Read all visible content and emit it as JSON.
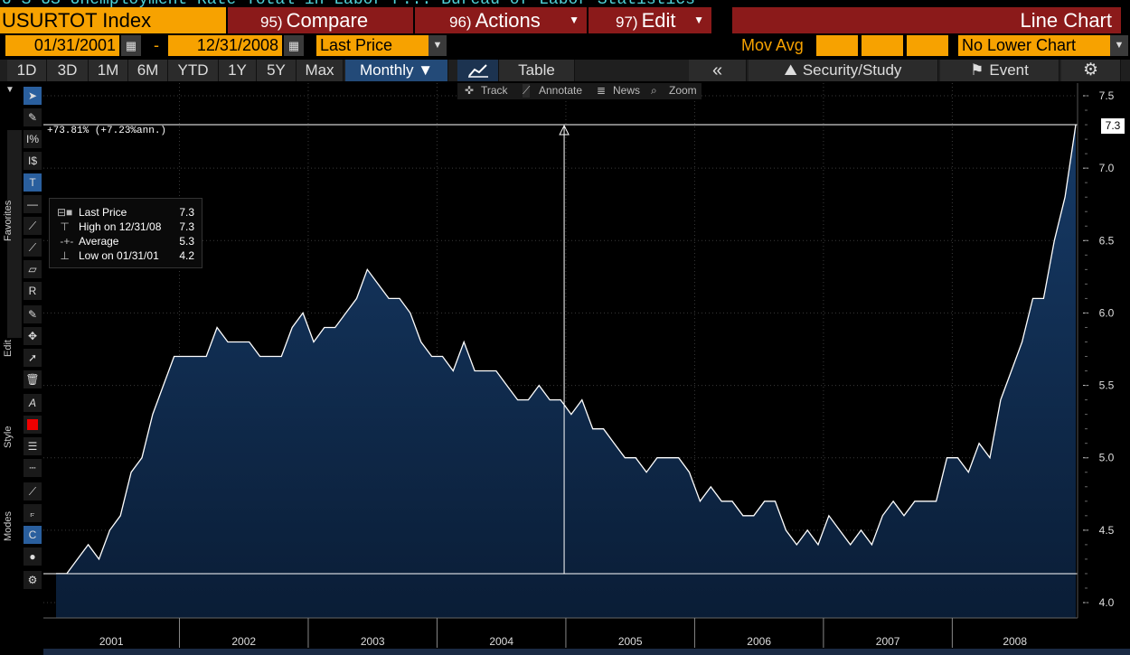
{
  "top_strip": "U S   US Unemployment Rate Total in Labor F...   Bureau of Labor Statistics",
  "header": {
    "ticker": "USURTOT Index",
    "compare": {
      "num": "95)",
      "label": "Compare"
    },
    "actions": {
      "num": "96)",
      "label": "Actions"
    },
    "edit": {
      "num": "97)",
      "label": "Edit"
    },
    "chart_type": "Line Chart"
  },
  "controls": {
    "start_date": "01/31/2001",
    "dash": "-",
    "end_date": "12/31/2008",
    "field": "Last Price",
    "mov_avg_label": "Mov Avg",
    "lower_chart": "No Lower Chart"
  },
  "ranges": {
    "buttons": [
      "1D",
      "3D",
      "1M",
      "6M",
      "YTD",
      "1Y",
      "5Y",
      "Max"
    ],
    "frequency": "Monthly ▼",
    "table": "Table",
    "back": "«",
    "security_study": "Security/Study",
    "event": "Event"
  },
  "mini_toolbar": {
    "track": "Track",
    "annotate": "Annotate",
    "news": "News",
    "zoom": "Zoom"
  },
  "left_tabs": {
    "favorites": "Favorites",
    "edit": "Edit",
    "style": "Style",
    "modes": "Modes"
  },
  "annotation": "+73.81% (+7.23%ann.)",
  "legend": {
    "rows": [
      {
        "name": "Last Price",
        "value": "7.3"
      },
      {
        "name": "High on 12/31/08",
        "value": "7.3"
      },
      {
        "name": "Average",
        "value": "5.3"
      },
      {
        "name": "Low on 01/31/01",
        "value": "4.2"
      }
    ]
  },
  "last_value_tag": "7.3",
  "colors": {
    "accent": "#f7a200",
    "menu": "#8b1a1a",
    "fill": "#0e2a4d",
    "line": "#ffffff"
  },
  "chart_data": {
    "type": "area",
    "xlabel": "",
    "ylabel": "",
    "ylim": [
      4.0,
      7.5
    ],
    "y_ticks": [
      "4.0",
      "4.5",
      "5.0",
      "5.5",
      "6.0",
      "6.5",
      "7.0",
      "7.5"
    ],
    "x_year_labels": [
      "2001",
      "2002",
      "2003",
      "2004",
      "2005",
      "2006",
      "2007",
      "2008"
    ],
    "start": "2001-01",
    "frequency": "monthly",
    "high": 7.3,
    "low": 4.2,
    "values": [
      4.2,
      4.2,
      4.3,
      4.4,
      4.3,
      4.5,
      4.6,
      4.9,
      5.0,
      5.3,
      5.5,
      5.7,
      5.7,
      5.7,
      5.7,
      5.9,
      5.8,
      5.8,
      5.8,
      5.7,
      5.7,
      5.7,
      5.9,
      6.0,
      5.8,
      5.9,
      5.9,
      6.0,
      6.1,
      6.3,
      6.2,
      6.1,
      6.1,
      6.0,
      5.8,
      5.7,
      5.7,
      5.6,
      5.8,
      5.6,
      5.6,
      5.6,
      5.5,
      5.4,
      5.4,
      5.5,
      5.4,
      5.4,
      5.3,
      5.4,
      5.2,
      5.2,
      5.1,
      5.0,
      5.0,
      4.9,
      5.0,
      5.0,
      5.0,
      4.9,
      4.7,
      4.8,
      4.7,
      4.7,
      4.6,
      4.6,
      4.7,
      4.7,
      4.5,
      4.4,
      4.5,
      4.4,
      4.6,
      4.5,
      4.4,
      4.5,
      4.4,
      4.6,
      4.7,
      4.6,
      4.7,
      4.7,
      4.7,
      5.0,
      5.0,
      4.9,
      5.1,
      5.0,
      5.4,
      5.6,
      5.8,
      6.1,
      6.1,
      6.5,
      6.8,
      7.3
    ]
  }
}
